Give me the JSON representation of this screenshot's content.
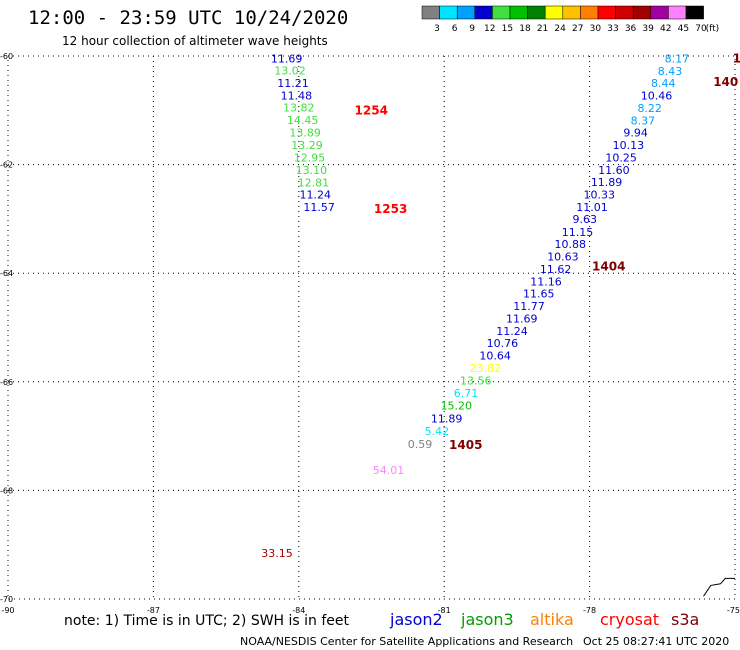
{
  "chart_data": {
    "type": "scatter",
    "title": "12:00 - 23:59 UTC 10/24/2020",
    "subtitle": "12 hour collection of altimeter wave heights",
    "xlim": [
      -90,
      -75
    ],
    "ylim": [
      -70,
      -60
    ],
    "grid": true,
    "legend": {
      "colorbar_ticks": [
        "3",
        "6",
        "9",
        "12",
        "15",
        "18",
        "21",
        "24",
        "27",
        "30",
        "33",
        "36",
        "39",
        "42",
        "45",
        "70"
      ],
      "colorbar_unit": "(ft)",
      "colorbar_colors": [
        "#808080",
        "#00e5ff",
        "#00a0ff",
        "#0000d0",
        "#40e040",
        "#00c000",
        "#008000",
        "#ffff00",
        "#ffc000",
        "#ff8000",
        "#ff0000",
        "#d00000",
        "#a00000",
        "#a000a0",
        "#ff80ff",
        "#000000"
      ]
    },
    "x_ticks": [
      {
        "value": -90,
        "label": "-90"
      },
      {
        "value": -87,
        "label": "-87"
      },
      {
        "value": -84,
        "label": "-84"
      },
      {
        "value": -81,
        "label": "-81"
      },
      {
        "value": -78,
        "label": "-78"
      },
      {
        "value": -75,
        "label": "-75"
      }
    ],
    "y_ticks": [
      {
        "value": -60,
        "label": "-60"
      },
      {
        "value": -62,
        "label": "-62"
      },
      {
        "value": -64,
        "label": "-64"
      },
      {
        "value": -66,
        "label": "-66"
      },
      {
        "value": -68,
        "label": "-68"
      },
      {
        "value": -70,
        "label": "-70"
      }
    ],
    "points": [
      {
        "x": -84.25,
        "y": -60.05,
        "label": "11.69",
        "color": "#0000d0"
      },
      {
        "x": -84.18,
        "y": -60.27,
        "label": "13.02",
        "color": "#40e040"
      },
      {
        "x": -84.12,
        "y": -60.5,
        "label": "11.21",
        "color": "#0000d0"
      },
      {
        "x": -84.05,
        "y": -60.73,
        "label": "11.48",
        "color": "#0000d0"
      },
      {
        "x": -84.0,
        "y": -60.95,
        "label": "13.82",
        "color": "#40e040"
      },
      {
        "x": -83.92,
        "y": -61.18,
        "label": "14.45",
        "color": "#40e040"
      },
      {
        "x": -83.87,
        "y": -61.41,
        "label": "13.89",
        "color": "#40e040"
      },
      {
        "x": -83.83,
        "y": -61.64,
        "label": "13.29",
        "color": "#40e040"
      },
      {
        "x": -83.78,
        "y": -61.87,
        "label": "12.95",
        "color": "#40e040"
      },
      {
        "x": -83.74,
        "y": -62.1,
        "label": "13.10",
        "color": "#40e040"
      },
      {
        "x": -83.7,
        "y": -62.33,
        "label": "12.81",
        "color": "#40e040"
      },
      {
        "x": -83.66,
        "y": -62.55,
        "label": "11.24",
        "color": "#0000d0"
      },
      {
        "x": -83.58,
        "y": -62.78,
        "label": "11.57",
        "color": "#0000d0"
      },
      {
        "x": -76.2,
        "y": -60.05,
        "label": "8.17",
        "color": "#00a0ff"
      },
      {
        "x": -76.34,
        "y": -60.28,
        "label": "8.43",
        "color": "#00a0ff"
      },
      {
        "x": -76.48,
        "y": -60.5,
        "label": "8.44",
        "color": "#00a0ff"
      },
      {
        "x": -76.62,
        "y": -60.73,
        "label": "10.46",
        "color": "#0000d0"
      },
      {
        "x": -76.76,
        "y": -60.96,
        "label": "8.22",
        "color": "#00a0ff"
      },
      {
        "x": -76.9,
        "y": -61.19,
        "label": "8.37",
        "color": "#00a0ff"
      },
      {
        "x": -77.05,
        "y": -61.41,
        "label": "9.94",
        "color": "#0000d0"
      },
      {
        "x": -77.2,
        "y": -61.64,
        "label": "10.13",
        "color": "#0000d0"
      },
      {
        "x": -77.35,
        "y": -61.87,
        "label": "10.25",
        "color": "#0000d0"
      },
      {
        "x": -77.5,
        "y": -62.1,
        "label": "11.60",
        "color": "#0000d0"
      },
      {
        "x": -77.65,
        "y": -62.32,
        "label": "11.89",
        "color": "#0000d0"
      },
      {
        "x": -77.8,
        "y": -62.55,
        "label": "10.33",
        "color": "#0000d0"
      },
      {
        "x": -77.95,
        "y": -62.78,
        "label": "11.01",
        "color": "#0000d0"
      },
      {
        "x": -78.1,
        "y": -63.0,
        "label": "9.63",
        "color": "#0000d0"
      },
      {
        "x": -78.25,
        "y": -63.24,
        "label": "11.15",
        "color": "#0000d0"
      },
      {
        "x": -78.4,
        "y": -63.46,
        "label": "10.88",
        "color": "#0000d0"
      },
      {
        "x": -78.55,
        "y": -63.69,
        "label": "10.63",
        "color": "#0000d0"
      },
      {
        "x": -78.7,
        "y": -63.92,
        "label": "11.62",
        "color": "#0000d0"
      },
      {
        "x": -78.9,
        "y": -64.15,
        "label": "11.16",
        "color": "#0000d0"
      },
      {
        "x": -79.05,
        "y": -64.37,
        "label": "11.65",
        "color": "#0000d0"
      },
      {
        "x": -79.25,
        "y": -64.6,
        "label": "11.77",
        "color": "#0000d0"
      },
      {
        "x": -79.4,
        "y": -64.83,
        "label": "11.69",
        "color": "#0000d0"
      },
      {
        "x": -79.6,
        "y": -65.06,
        "label": "11.24",
        "color": "#0000d0"
      },
      {
        "x": -79.8,
        "y": -65.29,
        "label": "10.76",
        "color": "#0000d0"
      },
      {
        "x": -79.95,
        "y": -65.52,
        "label": "10.64",
        "color": "#0000d0"
      },
      {
        "x": -80.15,
        "y": -65.75,
        "label": "23.82",
        "color": "#ffff00"
      },
      {
        "x": -80.35,
        "y": -65.98,
        "label": "13.56",
        "color": "#40e040"
      },
      {
        "x": -80.55,
        "y": -66.21,
        "label": "6.71",
        "color": "#00e5ff"
      },
      {
        "x": -80.75,
        "y": -66.44,
        "label": "15.20",
        "color": "#00c000"
      },
      {
        "x": -80.95,
        "y": -66.68,
        "label": "11.89",
        "color": "#0000d0"
      },
      {
        "x": -81.15,
        "y": -66.91,
        "label": "5.42",
        "color": "#00e5ff"
      },
      {
        "x": -81.5,
        "y": -67.15,
        "label": "0.59",
        "color": "#808080"
      },
      {
        "x": -82.15,
        "y": -67.62,
        "label": "54.01",
        "color": "#ff80ff"
      },
      {
        "x": -84.45,
        "y": -69.15,
        "label": "33.15",
        "color": "#a00000"
      }
    ],
    "pass_labels": [
      {
        "x": -82.85,
        "y": -61.0,
        "label": "1254",
        "color": "#ff0000"
      },
      {
        "x": -82.45,
        "y": -62.82,
        "label": "1253",
        "color": "#ff0000"
      },
      {
        "x": -77.95,
        "y": -63.88,
        "label": "1404",
        "color": "#800000"
      },
      {
        "x": -80.9,
        "y": -67.16,
        "label": "1405",
        "color": "#800000"
      },
      {
        "x": -75.45,
        "y": -60.48,
        "label": "140",
        "color": "#800000"
      },
      {
        "x": -75.05,
        "y": -60.05,
        "label": "1",
        "color": "#800000"
      }
    ],
    "coastline": [
      [
        -75.65,
        -69.95
      ],
      [
        -75.5,
        -69.75
      ],
      [
        -75.3,
        -69.72
      ],
      [
        -75.2,
        -69.62
      ],
      [
        -75.0,
        -69.62
      ]
    ]
  },
  "footer": {
    "note": "note: 1) Time is in UTC; 2) SWH is in feet",
    "satellites": [
      {
        "name": "jason2",
        "color": "#0000d0"
      },
      {
        "name": "jason3",
        "color": "#00a000"
      },
      {
        "name": "altika",
        "color": "#ff8000"
      },
      {
        "name": "cryosat",
        "color": "#ff0000"
      },
      {
        "name": "s3a",
        "color": "#800000"
      }
    ],
    "credit": "NOAA/NESDIS Center for Satellite Applications and Research",
    "timestamp": "Oct 25 08:27:41 UTC 2020"
  }
}
